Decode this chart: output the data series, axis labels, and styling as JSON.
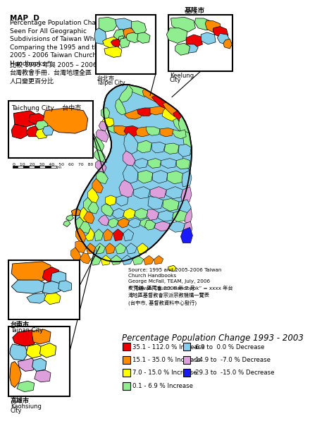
{
  "title_line1": "MAP  D",
  "title_block": "Percentage Population Changes\nSeen For All Geographic\nSubdivisions of Taiwan When\nComparing the 1995 and the\n2005 - 2006 Taiwan Church\nHandbooks *",
  "title_chinese": "比較 1995 年與 2005 – 2006年\n台灣教會手冊．台灣地理全區\n人口變更百分比",
  "background_color": "#ffffff",
  "legend_title": "Percentage Population Change 1993 - 2003",
  "legend_items": [
    {
      "label": "35.1 - 112.0 % Increase",
      "color": "#ee0000"
    },
    {
      "label": "15.1 - 35.0 % Increase",
      "color": "#ff8c00"
    },
    {
      "label": "7.0 - 15.0 % Increase",
      "color": "#ffff00"
    },
    {
      "label": "0.1 - 6.9 % Increase",
      "color": "#90ee90"
    },
    {
      "label": "-6.9 to  0.0 % Decrease",
      "color": "#87ceeb"
    },
    {
      "label": "-14.9 to  -7.0 % Decrease",
      "color": "#dda0dd"
    },
    {
      "label": "-29.3 to  -15.0 % Decrease",
      "color": "#1a1aff"
    }
  ],
  "source_text": "Source: 1995 and 2005-2006 Taiwan\nChurch Handbooks\nGeorge McFall, TEAM, July, 2006\n麦克舗  區同會 2006 年 7 月",
  "source_text2": "* “Taiwan Church Handbook” = xxxx 年台\n灣地區基督教會宗派宗教機構一覽表\n(台中市, 基督教資料中心發行)"
}
